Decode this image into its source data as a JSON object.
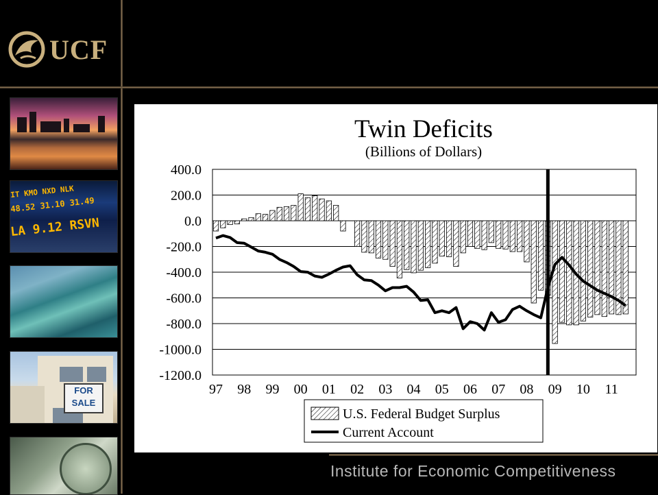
{
  "branding": {
    "logo_text": "UCF",
    "logo_icon": "pegasus-icon",
    "footer": "Institute for Economic Competitiveness",
    "accent": "#c9b07e"
  },
  "thumbnails": [
    {
      "name": "city-skyline-sunset-image"
    },
    {
      "name": "stock-ticker-image",
      "ticker_rows": [
        "IT   KMO   NXD   NLK",
        "48.52  31.10  31.49",
        "LA  9.12    RSVN"
      ]
    },
    {
      "name": "coastal-aerial-image"
    },
    {
      "name": "for-sale-house-image",
      "sign_text": "FOR SALE"
    },
    {
      "name": "dollar-bill-image"
    }
  ],
  "chart_data": {
    "type": "bar",
    "title": "Twin Deficits",
    "subtitle": "(Billions of Dollars)",
    "xlabel": "",
    "ylabel": "",
    "ylim": [
      -1200,
      400
    ],
    "yticks": [
      400,
      200,
      0,
      -200,
      -400,
      -600,
      -800,
      -1000,
      -1200
    ],
    "ytick_labels": [
      "400.0",
      "200.0",
      "0.0",
      "-200.0",
      "-400.0",
      "-600.0",
      "-800.0",
      "-1000.0",
      "-1200.0"
    ],
    "xticks": [
      "97",
      "98",
      "99",
      "00",
      "01",
      "02",
      "03",
      "04",
      "05",
      "06",
      "07",
      "08",
      "09",
      "10",
      "11"
    ],
    "x_range": [
      1997.0,
      2011.75
    ],
    "grid": true,
    "legend_position": "bottom",
    "vertical_marker_x": 2008.75,
    "series": [
      {
        "name": "U.S. Federal Budget Surplus",
        "kind": "bar",
        "pattern": "hatched",
        "x": [
          1997.0,
          1997.25,
          1997.5,
          1997.75,
          1998.0,
          1998.25,
          1998.5,
          1998.75,
          1999.0,
          1999.25,
          1999.5,
          1999.75,
          2000.0,
          2000.25,
          2000.5,
          2000.75,
          2001.0,
          2001.25,
          2001.5,
          2001.75,
          2002.0,
          2002.25,
          2002.5,
          2002.75,
          2003.0,
          2003.25,
          2003.5,
          2003.75,
          2004.0,
          2004.25,
          2004.5,
          2004.75,
          2005.0,
          2005.25,
          2005.5,
          2005.75,
          2006.0,
          2006.25,
          2006.5,
          2006.75,
          2007.0,
          2007.25,
          2007.5,
          2007.75,
          2008.0,
          2008.25,
          2008.5,
          2008.75,
          2009.0,
          2009.25,
          2009.5,
          2009.75,
          2010.0,
          2010.25,
          2010.5,
          2010.75,
          2011.0,
          2011.25,
          2011.5
        ],
        "values": [
          -80,
          -55,
          -30,
          -25,
          15,
          25,
          55,
          50,
          80,
          105,
          110,
          120,
          210,
          180,
          195,
          170,
          155,
          120,
          -80,
          0,
          -200,
          -245,
          -250,
          -290,
          -300,
          -355,
          -445,
          -380,
          -405,
          -385,
          -365,
          -330,
          -275,
          -280,
          -355,
          -250,
          -200,
          -215,
          -225,
          -170,
          -215,
          -220,
          -240,
          -240,
          -320,
          -640,
          -540,
          -580,
          -955,
          -790,
          -810,
          -810,
          -780,
          -750,
          -730,
          -745,
          -725,
          -730,
          -725
        ]
      },
      {
        "name": "Current Account",
        "kind": "line",
        "x": [
          1997.0,
          1997.25,
          1997.5,
          1997.75,
          1998.0,
          1998.25,
          1998.5,
          1998.75,
          1999.0,
          1999.25,
          1999.5,
          1999.75,
          2000.0,
          2000.25,
          2000.5,
          2000.75,
          2001.0,
          2001.25,
          2001.5,
          2001.75,
          2002.0,
          2002.25,
          2002.5,
          2002.75,
          2003.0,
          2003.25,
          2003.5,
          2003.75,
          2004.0,
          2004.25,
          2004.5,
          2004.75,
          2005.0,
          2005.25,
          2005.5,
          2005.75,
          2006.0,
          2006.25,
          2006.5,
          2006.75,
          2007.0,
          2007.25,
          2007.5,
          2007.75,
          2008.0,
          2008.25,
          2008.5,
          2008.75,
          2009.0,
          2009.25,
          2009.5,
          2009.75,
          2010.0,
          2010.25,
          2010.5,
          2010.75,
          2011.0,
          2011.25,
          2011.5
        ],
        "values": [
          -135,
          -115,
          -130,
          -170,
          -175,
          -205,
          -235,
          -245,
          -260,
          -300,
          -325,
          -355,
          -395,
          -400,
          -430,
          -440,
          -415,
          -385,
          -360,
          -350,
          -420,
          -460,
          -465,
          -500,
          -545,
          -520,
          -520,
          -510,
          -555,
          -620,
          -615,
          -715,
          -700,
          -715,
          -675,
          -840,
          -785,
          -800,
          -850,
          -715,
          -790,
          -770,
          -690,
          -665,
          -700,
          -730,
          -755,
          -520,
          -340,
          -285,
          -345,
          -415,
          -470,
          -505,
          -540,
          -565,
          -590,
          -620,
          -660
        ]
      }
    ]
  }
}
